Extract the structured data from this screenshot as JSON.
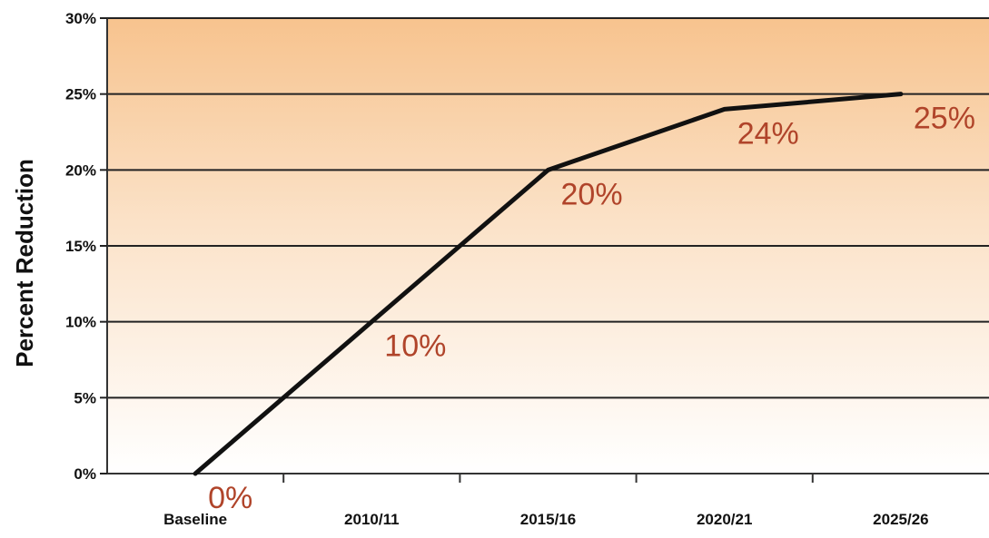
{
  "chart_data": {
    "type": "line",
    "title": "",
    "ylabel": "Percent Reduction",
    "xlabel": "",
    "ylim": [
      0,
      30
    ],
    "y_ticks": [
      {
        "value": 0,
        "label": "0%"
      },
      {
        "value": 5,
        "label": "5%"
      },
      {
        "value": 10,
        "label": "10%"
      },
      {
        "value": 15,
        "label": "15%"
      },
      {
        "value": 20,
        "label": "20%"
      },
      {
        "value": 25,
        "label": "25%"
      },
      {
        "value": 30,
        "label": "30%"
      }
    ],
    "x_ticks": [
      {
        "value": 2005,
        "label": "Baseline"
      },
      {
        "value": 2010,
        "label": "2010/11"
      },
      {
        "value": 2015,
        "label": "2015/16"
      },
      {
        "value": 2020,
        "label": "2020/21"
      },
      {
        "value": 2025,
        "label": "2025/26"
      }
    ],
    "xlim": [
      2002.5,
      2027.5
    ],
    "grid": true,
    "background": "orange-to-white vertical gradient",
    "colors": {
      "line": "#111111",
      "data_label": "#b0442a",
      "grid": "#222222",
      "bg_top": "#f7c38e",
      "bg_bottom": "#ffffff"
    },
    "series": [
      {
        "points": [
          {
            "x": 2005,
            "y": 0,
            "label": "0%"
          },
          {
            "x": 2010,
            "y": 10,
            "label": "10%"
          },
          {
            "x": 2015,
            "y": 20,
            "label": "20%"
          },
          {
            "x": 2020,
            "y": 24,
            "label": "24%"
          },
          {
            "x": 2025,
            "y": 25,
            "label": "25%"
          }
        ]
      }
    ]
  }
}
